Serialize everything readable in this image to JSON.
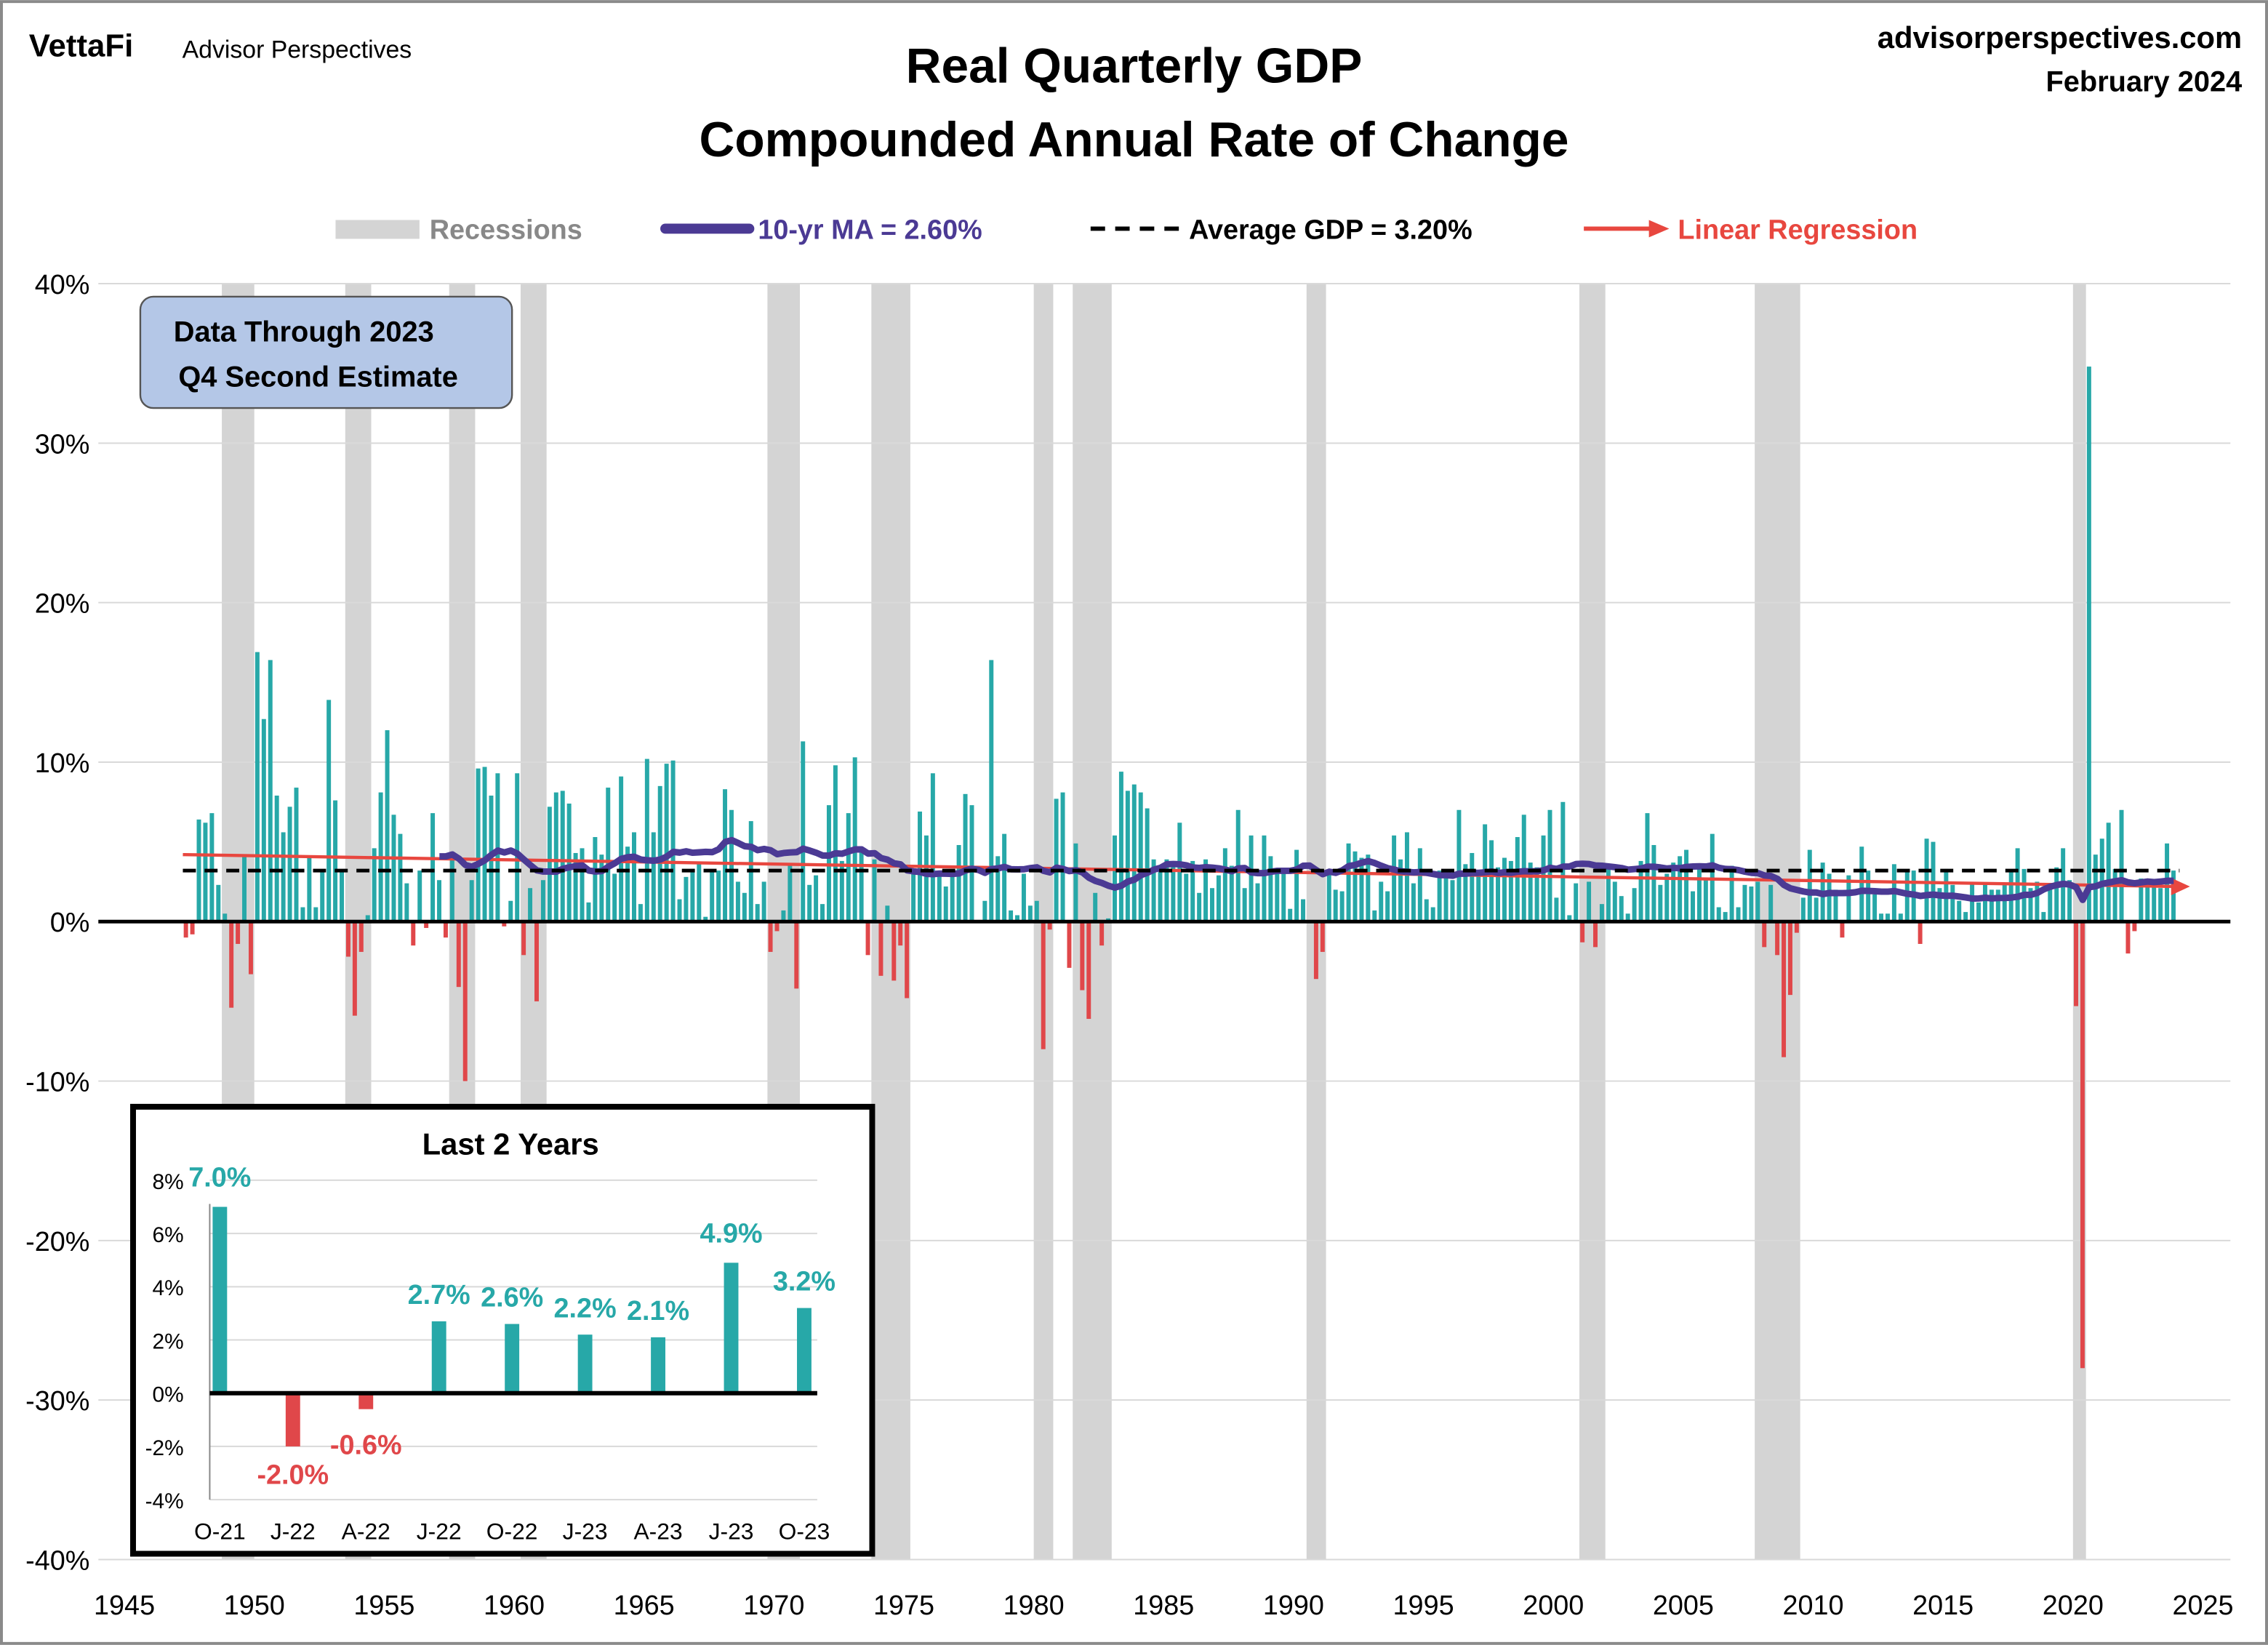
{
  "header": {
    "logo_text": "VettaFi",
    "brand": "Advisor Perspectives",
    "site": "advisorperspectives.com",
    "date": "February 2024"
  },
  "colors": {
    "positive": "#27a8a8",
    "negative": "#e0474a",
    "moving_average": "#4b3a94",
    "average": "#000000",
    "regression": "#e8473f",
    "recession": "#d4d4d4",
    "note_box": "#b4c7e7"
  },
  "note": {
    "line1": "Data Through 2023",
    "line2": "Q4 Second Estimate"
  },
  "chart_data": [
    {
      "type": "bar",
      "title": "Real Quarterly GDP",
      "subtitle": "Compounded Annual Rate of Change",
      "legend": {
        "placement": "top",
        "recessions": "Recessions",
        "moving_average": "10-yr MA = 2.60%",
        "average": "Average GDP = 3.20%",
        "regression": "Linear Regression"
      },
      "xlim": [
        1945,
        2025
      ],
      "ylim": [
        -40,
        40
      ],
      "x_ticks": [
        "1945",
        "1950",
        "1955",
        "1960",
        "1965",
        "1970",
        "1975",
        "1980",
        "1985",
        "1990",
        "1995",
        "2000",
        "2005",
        "2010",
        "2015",
        "2020",
        "2025"
      ],
      "y_ticks": [
        "40%",
        "30%",
        "20%",
        "10%",
        "0%",
        "-10%",
        "-20%",
        "-30%",
        "-40%"
      ],
      "grid": true,
      "average_value": 3.2,
      "moving_average_window_years": 10,
      "regression": {
        "start": [
          1947.25,
          4.2
        ],
        "end": [
          2024.5,
          2.2
        ]
      },
      "recessions": [
        [
          1948.75,
          1950.0
        ],
        [
          1953.5,
          1954.5
        ],
        [
          1957.5,
          1958.5
        ],
        [
          1960.25,
          1961.25
        ],
        [
          1969.75,
          1971.0
        ],
        [
          1973.75,
          1975.25
        ],
        [
          1980.0,
          1980.75
        ],
        [
          1981.5,
          1983.0
        ],
        [
          1990.5,
          1991.25
        ],
        [
          2001.0,
          2002.0
        ],
        [
          2007.75,
          2009.5
        ],
        [
          2020.0,
          2020.5
        ]
      ],
      "first_quarter": "1947-Q2",
      "quarterly_growth": [
        -1.0,
        -0.8,
        6.4,
        6.2,
        6.8,
        2.3,
        0.5,
        -5.4,
        -1.4,
        4.2,
        -3.3,
        16.9,
        12.7,
        16.4,
        7.9,
        5.6,
        7.2,
        8.4,
        0.9,
        4.0,
        0.9,
        3.2,
        13.9,
        7.6,
        3.1,
        -2.2,
        -5.9,
        -1.9,
        0.4,
        4.6,
        8.1,
        12.0,
        6.7,
        5.5,
        2.4,
        -1.5,
        3.2,
        -0.4,
        6.8,
        2.6,
        -1.0,
        4.0,
        -4.1,
        -10.0,
        2.6,
        9.6,
        9.7,
        7.9,
        9.3,
        -0.3,
        1.3,
        9.3,
        -2.1,
        2.1,
        -5.0,
        2.6,
        7.2,
        8.1,
        8.2,
        7.4,
        4.3,
        4.6,
        1.2,
        5.3,
        4.2,
        8.4,
        3.0,
        9.1,
        4.7,
        5.6,
        1.1,
        10.2,
        5.6,
        8.5,
        9.9,
        10.1,
        1.4,
        2.8,
        3.3,
        3.6,
        0.3,
        3.2,
        3.2,
        8.3,
        7.0,
        2.5,
        1.8,
        6.3,
        1.1,
        2.5,
        -1.9,
        -0.6,
        0.7,
        3.6,
        -4.2,
        11.3,
        2.3,
        2.9,
        1.1,
        7.3,
        9.8,
        3.8,
        6.8,
        10.3,
        4.5,
        -2.1,
        3.9,
        -3.4,
        1.0,
        -3.7,
        -1.5,
        -4.8,
        3.0,
        6.9,
        5.4,
        9.3,
        3.0,
        2.2,
        2.9,
        4.8,
        8.0,
        7.3,
        0.0,
        1.3,
        16.4,
        4.1,
        5.5,
        0.7,
        0.4,
        3.0,
        1.0,
        1.3,
        -8.0,
        -0.5,
        7.7,
        8.1,
        -2.9,
        4.9,
        -4.3,
        -6.1,
        1.8,
        -1.5,
        0.2,
        5.4,
        9.4,
        8.2,
        8.6,
        8.1,
        7.1,
        3.9,
        3.3,
        3.9,
        3.6,
        6.2,
        3.0,
        3.8,
        1.8,
        3.9,
        2.1,
        2.9,
        4.6,
        3.5,
        7.0,
        2.1,
        5.4,
        2.4,
        5.4,
        4.1,
        3.1,
        3.0,
        0.8,
        4.5,
        1.4,
        0.0,
        -3.6,
        -1.9,
        3.2,
        2.0,
        1.9,
        4.9,
        4.4,
        4.0,
        4.2,
        0.7,
        2.5,
        1.9,
        5.4,
        3.9,
        5.6,
        2.4,
        4.6,
        1.4,
        0.9,
        3.2,
        2.9,
        2.6,
        7.0,
        3.6,
        4.3,
        3.1,
        6.1,
        5.1,
        3.4,
        4.0,
        3.8,
        5.3,
        6.7,
        3.7,
        3.4,
        5.4,
        7.0,
        1.5,
        7.5,
        0.4,
        2.4,
        -1.3,
        2.5,
        -1.6,
        1.1,
        3.4,
        2.5,
        1.6,
        0.5,
        2.1,
        3.8,
        6.8,
        4.8,
        2.3,
        3.0,
        3.7,
        4.1,
        4.5,
        1.9,
        3.6,
        2.6,
        5.5,
        0.9,
        0.6,
        3.5,
        0.9,
        2.3,
        2.2,
        2.5,
        -1.6,
        2.3,
        -2.1,
        -8.5,
        -4.6,
        -0.7,
        1.5,
        4.5,
        1.5,
        3.7,
        3.0,
        2.0,
        -1.0,
        2.9,
        -0.1,
        4.7,
        3.2,
        1.7,
        0.5,
        0.5,
        3.6,
        0.5,
        3.2,
        3.2,
        -1.4,
        5.2,
        5.0,
        2.1,
        3.3,
        2.3,
        1.3,
        0.6,
        2.4,
        1.2,
        2.4,
        2.0,
        2.0,
        2.3,
        3.2,
        4.6,
        3.3,
        2.1,
        2.5,
        0.6,
        2.2,
        3.4,
        4.6,
        2.6,
        -5.3,
        -28.0,
        34.8,
        4.2,
        5.2,
        6.2,
        3.3,
        7.0,
        -2.0,
        -0.6,
        2.7,
        2.6,
        2.2,
        2.1,
        4.9,
        3.2
      ]
    },
    {
      "type": "bar",
      "title": "Last 2 Years",
      "categories": [
        "O-21",
        "J-22",
        "A-22",
        "J-22",
        "O-22",
        "J-23",
        "A-23",
        "J-23",
        "O-23"
      ],
      "values": [
        7.0,
        -2.0,
        -0.6,
        2.7,
        2.6,
        2.2,
        2.1,
        4.9,
        3.2
      ],
      "labels": [
        "7.0%",
        "-2.0%",
        "-0.6%",
        "2.7%",
        "2.6%",
        "2.2%",
        "2.1%",
        "4.9%",
        "3.2%"
      ],
      "ylim": [
        -4,
        8
      ],
      "y_ticks": [
        "8%",
        "6%",
        "4%",
        "2%",
        "0%",
        "-2%",
        "-4%"
      ],
      "grid": true
    }
  ]
}
